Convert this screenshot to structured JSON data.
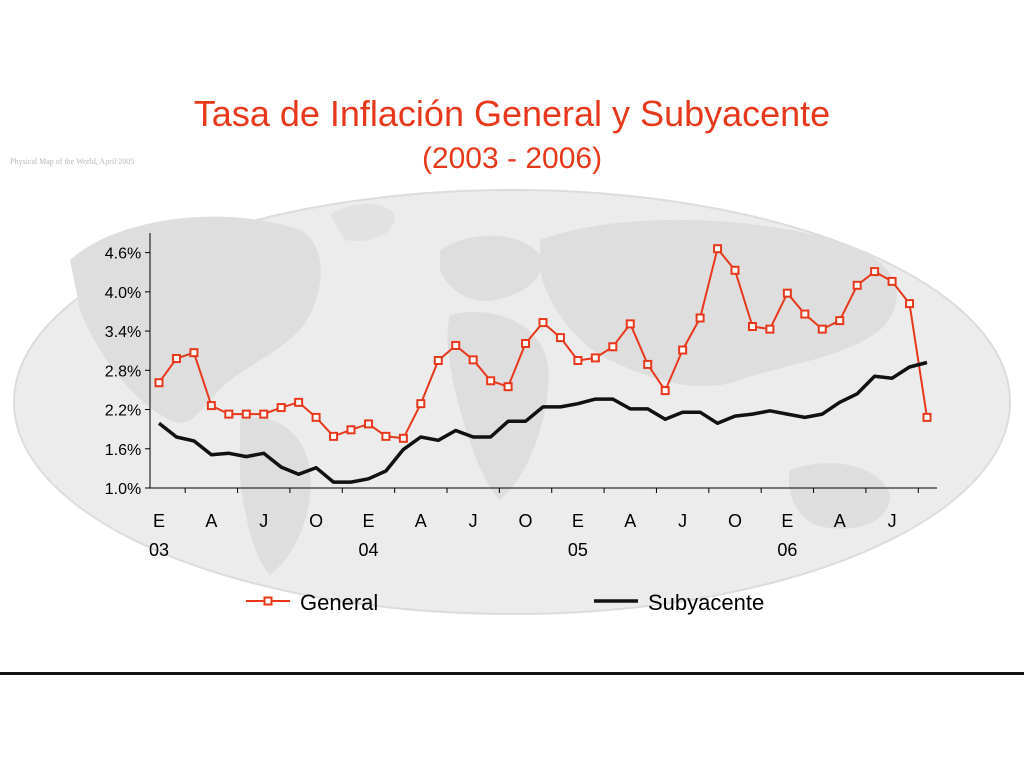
{
  "title": "Tasa de Inflación General y Subyacente",
  "subtitle": "(2003 - 2006)",
  "map_caption": "Physical Map of the World, April 2005",
  "colors": {
    "general": "#e8381c",
    "subyacente": "#111111",
    "title": "#e8381c",
    "map": "#e6e6e6"
  },
  "chart_data": {
    "type": "line",
    "title": "",
    "xlabel": "",
    "ylabel": "",
    "ylim": [
      1.0,
      4.9
    ],
    "yticks": [
      "1.0%",
      "1.6%",
      "2.2%",
      "2.8%",
      "3.4%",
      "4.0%",
      "4.6%"
    ],
    "x_month_labels": [
      "E",
      "A",
      "J",
      "O",
      "E",
      "A",
      "J",
      "O",
      "E",
      "A",
      "J",
      "O",
      "E",
      "A",
      "J"
    ],
    "x_year_labels": [
      "03",
      "04",
      "05",
      "06"
    ],
    "x": [
      "2003-01",
      "2003-02",
      "2003-03",
      "2003-04",
      "2003-05",
      "2003-06",
      "2003-07",
      "2003-08",
      "2003-09",
      "2003-10",
      "2003-11",
      "2003-12",
      "2004-01",
      "2004-02",
      "2004-03",
      "2004-04",
      "2004-05",
      "2004-06",
      "2004-07",
      "2004-08",
      "2004-09",
      "2004-10",
      "2004-11",
      "2004-12",
      "2005-01",
      "2005-02",
      "2005-03",
      "2005-04",
      "2005-05",
      "2005-06",
      "2005-07",
      "2005-08",
      "2005-09",
      "2005-10",
      "2005-11",
      "2005-12",
      "2006-01",
      "2006-02",
      "2006-03",
      "2006-04",
      "2006-05",
      "2006-06",
      "2006-07",
      "2006-08",
      "2006-09"
    ],
    "legend_position": "bottom",
    "grid": false,
    "series": [
      {
        "name": "General",
        "marker": "square",
        "values": [
          2.61,
          2.98,
          3.07,
          2.26,
          2.13,
          2.13,
          2.13,
          2.23,
          2.31,
          2.08,
          1.79,
          1.89,
          1.98,
          1.79,
          1.76,
          2.29,
          2.95,
          3.18,
          2.96,
          2.64,
          2.55,
          3.21,
          3.53,
          3.3,
          2.95,
          2.99,
          3.16,
          3.51,
          2.89,
          2.49,
          3.11,
          3.6,
          4.66,
          4.33,
          3.47,
          3.43,
          3.98,
          3.66,
          3.43,
          3.56,
          4.1,
          4.31,
          4.16,
          3.82,
          2.08
        ]
      },
      {
        "name": "Subyacente",
        "marker": "none",
        "values": [
          1.99,
          1.78,
          1.72,
          1.51,
          1.53,
          1.48,
          1.53,
          1.32,
          1.21,
          1.31,
          1.09,
          1.09,
          1.14,
          1.26,
          1.59,
          1.78,
          1.73,
          1.88,
          1.78,
          1.78,
          2.02,
          2.02,
          2.24,
          2.24,
          2.29,
          2.36,
          2.36,
          2.21,
          2.21,
          2.05,
          2.16,
          2.16,
          1.99,
          2.1,
          2.13,
          2.18,
          2.13,
          2.08,
          2.13,
          2.31,
          2.44,
          2.71,
          2.68,
          2.85,
          2.92
        ]
      }
    ]
  }
}
